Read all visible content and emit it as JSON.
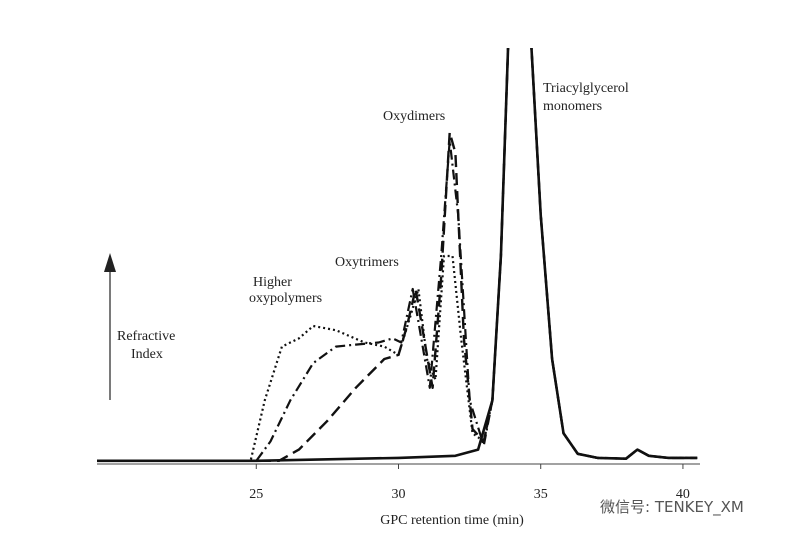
{
  "chart_data": {
    "type": "line",
    "x_label": "GPC retention time (min)",
    "y_label": [
      "Refractive",
      "Index"
    ],
    "annotations": {
      "monomers": [
        "Triacylglycerol",
        "monomers"
      ],
      "dimers": "Oxydimers",
      "trimers": "Oxytrimers",
      "polymers": [
        "Higher",
        "oxypolymers"
      ]
    },
    "watermark": "微信号: TENKEY_XM",
    "xlim": [
      19.4,
      40.6
    ],
    "xticks": [
      25,
      30,
      35,
      40
    ],
    "ylim": [
      0,
      100
    ],
    "series": [
      {
        "color": "#111",
        "dash": "none",
        "width": 2.6,
        "x": [
          19.4,
          25,
          30,
          32,
          32.8,
          33.3,
          33.6,
          33.9,
          34.6,
          35,
          35.4,
          35.8,
          36.3,
          37,
          38,
          38.4,
          38.8,
          39.5,
          40.5
        ],
        "values": [
          0.3,
          0.3,
          1,
          1.5,
          3,
          15,
          50,
          110,
          110,
          60,
          25,
          7,
          2,
          1,
          0.8,
          3,
          1.5,
          1,
          1
        ]
      },
      {
        "color": "#111",
        "dash": "12,6",
        "width": 2.4,
        "x": [
          19.4,
          25.8,
          26.5,
          27.5,
          28.5,
          29.5,
          30,
          30.3,
          30.6,
          30.9,
          31.2,
          31.5,
          31.8,
          32,
          32.3,
          32.6,
          33,
          33.3,
          33.6,
          33.9,
          34.6,
          35,
          35.4,
          35.8,
          36.3,
          37,
          38,
          38.4,
          38.8,
          39.5,
          40.5
        ],
        "values": [
          0.3,
          0.3,
          3,
          10,
          18,
          25,
          26,
          33,
          42,
          30,
          18,
          45,
          80,
          75,
          30,
          8,
          5,
          15,
          50,
          110,
          110,
          60,
          25,
          7,
          2,
          1,
          0.8,
          3,
          1.5,
          1,
          1
        ]
      },
      {
        "color": "#111",
        "dash": "10,4,2,4",
        "width": 2.2,
        "x": [
          19.4,
          25,
          25.5,
          26.2,
          27,
          27.8,
          28.5,
          29.3,
          29.8,
          30.1,
          30.5,
          30.8,
          31.1,
          31.5,
          31.8,
          32.1,
          32.5,
          33,
          33.3,
          33.6,
          33.9,
          34.6,
          35,
          35.4,
          35.8,
          36.3,
          37,
          38,
          38.4,
          38.8,
          39.5,
          40.5
        ],
        "values": [
          0.3,
          0.3,
          5,
          15,
          24,
          28,
          28.5,
          29,
          30,
          29,
          42,
          30,
          18,
          50,
          78,
          60,
          15,
          4,
          15,
          50,
          110,
          110,
          60,
          25,
          7,
          2,
          1,
          0.8,
          3,
          1.5,
          1,
          1
        ]
      },
      {
        "color": "#111",
        "dash": "2,3",
        "width": 2.2,
        "x": [
          19.4,
          24.8,
          25.3,
          25.9,
          26.5,
          27,
          27.8,
          28.8,
          29.5,
          30,
          30.4,
          30.7,
          31,
          31.3,
          31.6,
          31.9,
          32.2,
          32.6,
          33,
          33.3,
          33.6,
          33.9,
          34.6,
          35,
          35.4,
          35.8,
          36.3,
          37,
          38,
          38.4,
          38.8,
          39.5,
          40.5
        ],
        "values": [
          0.3,
          0.3,
          15,
          28,
          30,
          33,
          32,
          29,
          28,
          26,
          35,
          42,
          25,
          20,
          50,
          50,
          30,
          7,
          5,
          15,
          50,
          110,
          110,
          60,
          25,
          7,
          2,
          1,
          0.8,
          3,
          1.5,
          1,
          1
        ]
      }
    ]
  }
}
